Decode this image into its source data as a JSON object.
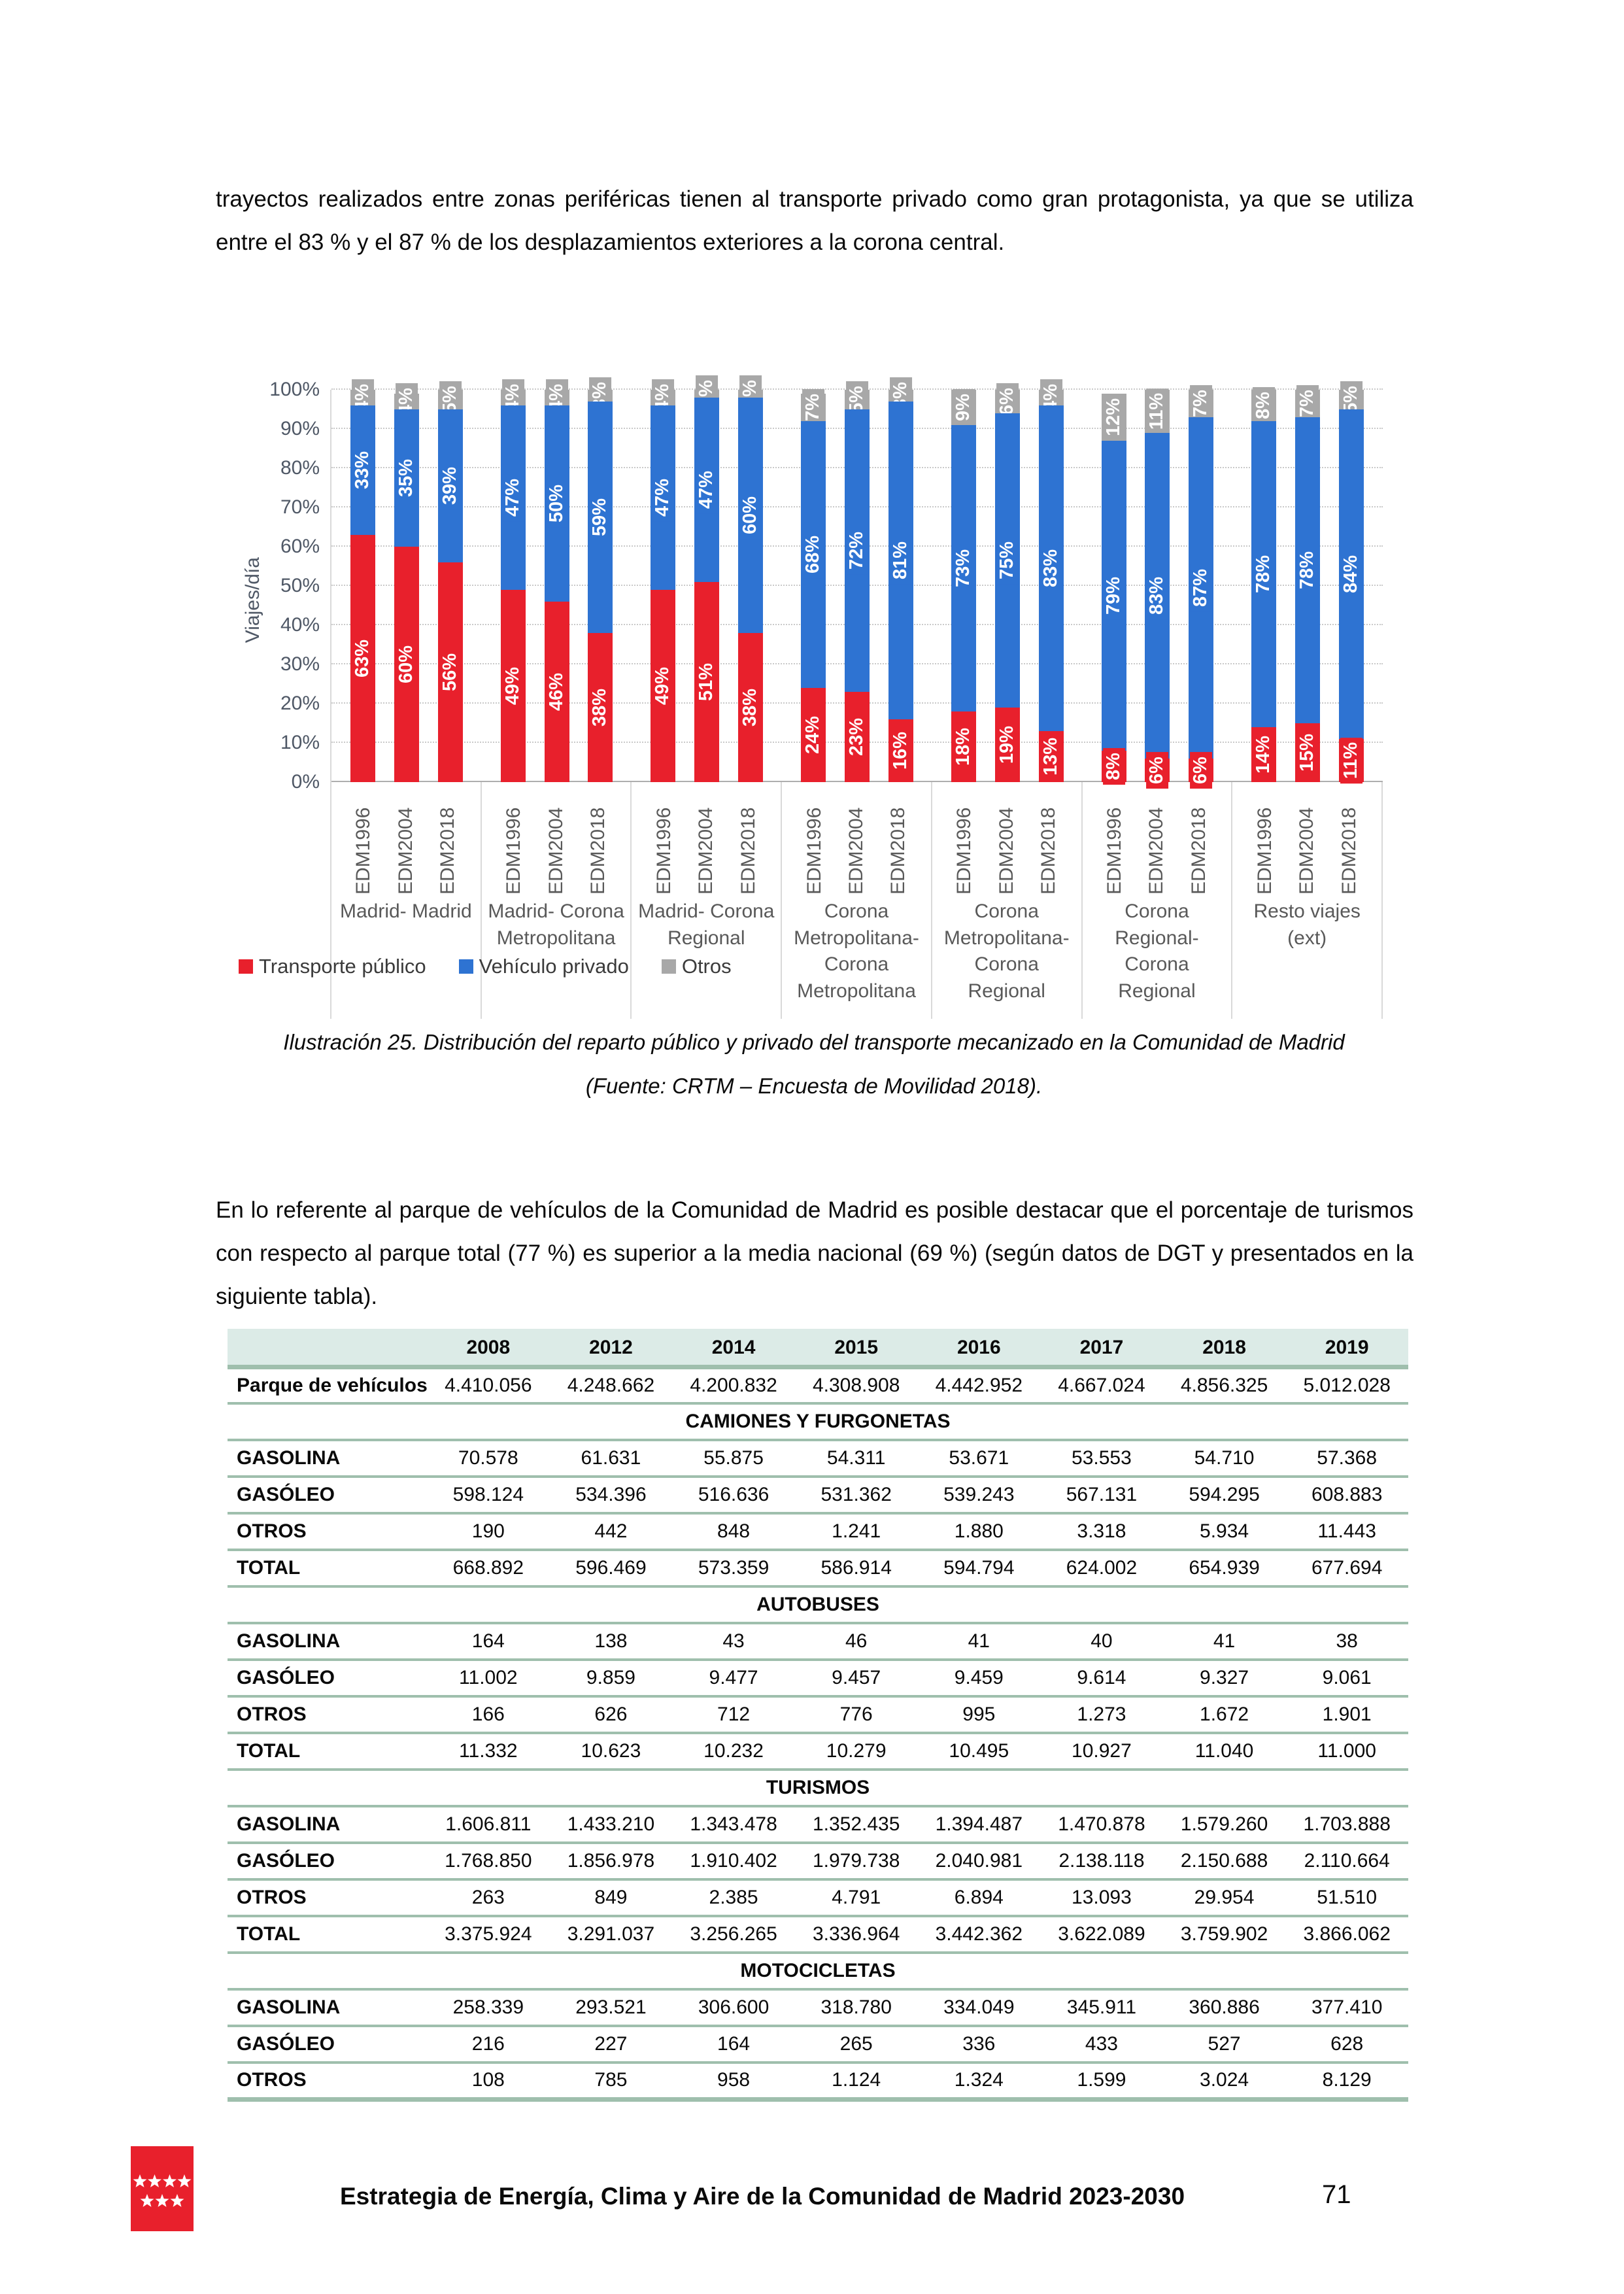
{
  "page": {
    "paragraph1": "trayectos realizados entre zonas periféricas tienen al transporte privado como gran protagonista, ya que se utiliza entre el 83 % y el 87 % de los desplazamientos exteriores a la corona central.",
    "caption": "Ilustración 25. Distribución del reparto público y privado del transporte mecanizado en la Comunidad de Madrid (Fuente: CRTM – Encuesta de Movilidad 2018).",
    "paragraph2": "En lo referente al parque de vehículos de la Comunidad de Madrid es posible destacar que el porcentaje de turismos con respecto al parque total (77 %) es superior a la media nacional (69 %) (según datos de DGT y presentados en la siguiente tabla).",
    "footer": {
      "text": "Estrategia de Energía, Clima y Aire de la Comunidad de Madrid 2023-2030",
      "page_number": "71"
    }
  },
  "chart_data": {
    "type": "bar",
    "stacked": true,
    "title": "",
    "xlabel": "",
    "ylabel": "Viajes/día",
    "ylim": [
      0,
      100
    ],
    "ytick_step": 10,
    "grid": true,
    "legend_position": "bottom-left",
    "colors": {
      "publico": "#e8202c",
      "privado": "#2e73d2",
      "otros": "#a8a8a8"
    },
    "legend": [
      {
        "key": "publico",
        "label": "Transporte público",
        "color": "#e8202c"
      },
      {
        "key": "privado",
        "label": "Vehículo privado",
        "color": "#2e73d2"
      },
      {
        "key": "otros",
        "label": "Otros",
        "color": "#a8a8a8"
      }
    ],
    "groups": [
      {
        "label": "Madrid- Madrid",
        "bars": [
          {
            "edm": "EDM1996",
            "publico": 63,
            "privado": 33,
            "otros": 4
          },
          {
            "edm": "EDM2004",
            "publico": 60,
            "privado": 35,
            "otros": 4
          },
          {
            "edm": "EDM2018",
            "publico": 56,
            "privado": 39,
            "otros": 5
          }
        ]
      },
      {
        "label": "Madrid- Corona Metropolitana",
        "bars": [
          {
            "edm": "EDM1996",
            "publico": 49,
            "privado": 47,
            "otros": 4
          },
          {
            "edm": "EDM2004",
            "publico": 46,
            "privado": 50,
            "otros": 4
          },
          {
            "edm": "EDM2018",
            "publico": 38,
            "privado": 59,
            "otros": 3
          }
        ]
      },
      {
        "label": "Madrid- Corona Regional",
        "bars": [
          {
            "edm": "EDM1996",
            "publico": 49,
            "privado": 47,
            "otros": 4
          },
          {
            "edm": "EDM2004",
            "publico": 51,
            "privado": 47,
            "otros": 2
          },
          {
            "edm": "EDM2018",
            "publico": 38,
            "privado": 60,
            "otros": 2
          }
        ]
      },
      {
        "label": "Corona Metropolitana- Corona Metropolitana",
        "bars": [
          {
            "edm": "EDM1996",
            "publico": 24,
            "privado": 68,
            "otros": 7
          },
          {
            "edm": "EDM2004",
            "publico": 23,
            "privado": 72,
            "otros": 5
          },
          {
            "edm": "EDM2018",
            "publico": 16,
            "privado": 81,
            "otros": 3
          }
        ]
      },
      {
        "label": "Corona Metropolitana- Corona Regional",
        "bars": [
          {
            "edm": "EDM1996",
            "publico": 18,
            "privado": 73,
            "otros": 9
          },
          {
            "edm": "EDM2004",
            "publico": 19,
            "privado": 75,
            "otros": 6
          },
          {
            "edm": "EDM2018",
            "publico": 13,
            "privado": 83,
            "otros": 4
          }
        ]
      },
      {
        "label": "Corona Regional- Corona Regional",
        "bars": [
          {
            "edm": "EDM1996",
            "publico": 8,
            "privado": 79,
            "otros": 12
          },
          {
            "edm": "EDM2004",
            "publico": 6,
            "privado": 83,
            "otros": 11
          },
          {
            "edm": "EDM2018",
            "publico": 6,
            "privado": 87,
            "otros": 7
          }
        ]
      },
      {
        "label": "Resto viajes (ext)",
        "bars": [
          {
            "edm": "EDM1996",
            "publico": 14,
            "privado": 78,
            "otros": 8
          },
          {
            "edm": "EDM2004",
            "publico": 15,
            "privado": 78,
            "otros": 7
          },
          {
            "edm": "EDM2018",
            "publico": 11,
            "privado": 84,
            "otros": 5
          }
        ]
      }
    ]
  },
  "table": {
    "years": [
      "2008",
      "2012",
      "2014",
      "2015",
      "2016",
      "2017",
      "2018",
      "2019"
    ],
    "line_color": "#9fbfad",
    "header_bg": "#dcebe7",
    "rows": [
      {
        "type": "data",
        "label": "Parque de vehículos",
        "values": [
          "4.410.056",
          "4.248.662",
          "4.200.832",
          "4.308.908",
          "4.442.952",
          "4.667.024",
          "4.856.325",
          "5.012.028"
        ]
      },
      {
        "type": "section",
        "label": "CAMIONES Y FURGONETAS"
      },
      {
        "type": "data",
        "label": "GASOLINA",
        "values": [
          "70.578",
          "61.631",
          "55.875",
          "54.311",
          "53.671",
          "53.553",
          "54.710",
          "57.368"
        ]
      },
      {
        "type": "data",
        "label": "GASÓLEO",
        "values": [
          "598.124",
          "534.396",
          "516.636",
          "531.362",
          "539.243",
          "567.131",
          "594.295",
          "608.883"
        ]
      },
      {
        "type": "data",
        "label": "OTROS",
        "values": [
          "190",
          "442",
          "848",
          "1.241",
          "1.880",
          "3.318",
          "5.934",
          "11.443"
        ]
      },
      {
        "type": "data",
        "label": "TOTAL",
        "values": [
          "668.892",
          "596.469",
          "573.359",
          "586.914",
          "594.794",
          "624.002",
          "654.939",
          "677.694"
        ]
      },
      {
        "type": "section",
        "label": "AUTOBUSES"
      },
      {
        "type": "data",
        "label": "GASOLINA",
        "values": [
          "164",
          "138",
          "43",
          "46",
          "41",
          "40",
          "41",
          "38"
        ]
      },
      {
        "type": "data",
        "label": "GASÓLEO",
        "values": [
          "11.002",
          "9.859",
          "9.477",
          "9.457",
          "9.459",
          "9.614",
          "9.327",
          "9.061"
        ]
      },
      {
        "type": "data",
        "label": "OTROS",
        "values": [
          "166",
          "626",
          "712",
          "776",
          "995",
          "1.273",
          "1.672",
          "1.901"
        ]
      },
      {
        "type": "data",
        "label": "TOTAL",
        "values": [
          "11.332",
          "10.623",
          "10.232",
          "10.279",
          "10.495",
          "10.927",
          "11.040",
          "11.000"
        ]
      },
      {
        "type": "section",
        "label": "TURISMOS"
      },
      {
        "type": "data",
        "label": "GASOLINA",
        "values": [
          "1.606.811",
          "1.433.210",
          "1.343.478",
          "1.352.435",
          "1.394.487",
          "1.470.878",
          "1.579.260",
          "1.703.888"
        ]
      },
      {
        "type": "data",
        "label": "GASÓLEO",
        "values": [
          "1.768.850",
          "1.856.978",
          "1.910.402",
          "1.979.738",
          "2.040.981",
          "2.138.118",
          "2.150.688",
          "2.110.664"
        ]
      },
      {
        "type": "data",
        "label": "OTROS",
        "values": [
          "263",
          "849",
          "2.385",
          "4.791",
          "6.894",
          "13.093",
          "29.954",
          "51.510"
        ]
      },
      {
        "type": "data",
        "label": "TOTAL",
        "values": [
          "3.375.924",
          "3.291.037",
          "3.256.265",
          "3.336.964",
          "3.442.362",
          "3.622.089",
          "3.759.902",
          "3.866.062"
        ]
      },
      {
        "type": "section",
        "label": "MOTOCICLETAS"
      },
      {
        "type": "data",
        "label": "GASOLINA",
        "values": [
          "258.339",
          "293.521",
          "306.600",
          "318.780",
          "334.049",
          "345.911",
          "360.886",
          "377.410"
        ]
      },
      {
        "type": "data",
        "label": "GASÓLEO",
        "values": [
          "216",
          "227",
          "164",
          "265",
          "336",
          "433",
          "527",
          "628"
        ]
      },
      {
        "type": "data",
        "label": "OTROS",
        "values": [
          "108",
          "785",
          "958",
          "1.124",
          "1.324",
          "1.599",
          "3.024",
          "8.129"
        ]
      }
    ]
  }
}
